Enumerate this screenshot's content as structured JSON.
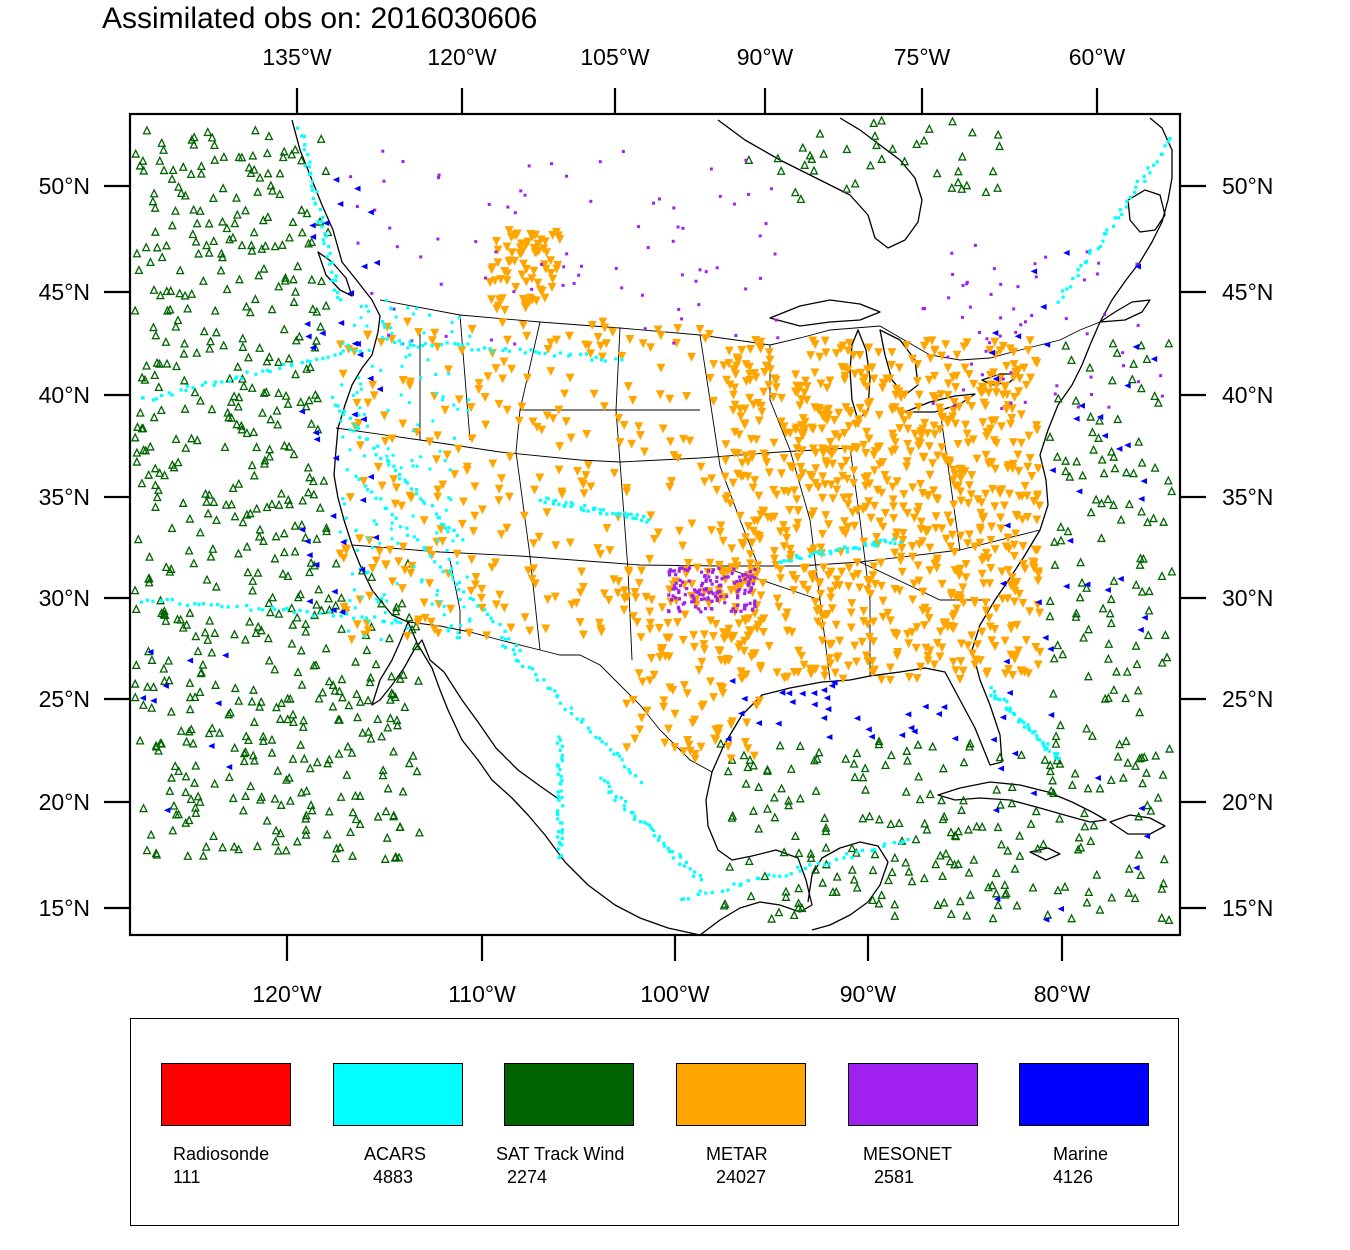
{
  "title": "Assimilated obs on: 2016030606",
  "axes": {
    "top_lon_labels": [
      "135°W",
      "120°W",
      "105°W",
      "90°W",
      "75°W",
      "60°W"
    ],
    "bottom_lon_labels": [
      "120°W",
      "110°W",
      "100°W",
      "90°W",
      "80°W"
    ],
    "lat_labels": [
      "50°N",
      "45°N",
      "40°N",
      "35°N",
      "30°N",
      "25°N",
      "20°N",
      "15°N"
    ]
  },
  "legend": [
    {
      "name": "Radiosonde",
      "count": "111",
      "color": "#ff0000"
    },
    {
      "name": "ACARS",
      "count": "4883",
      "color": "#00ffff"
    },
    {
      "name": "SAT Track Wind",
      "count": "2274",
      "color": "#006400"
    },
    {
      "name": "METAR",
      "count": "24027",
      "color": "#ffa500"
    },
    {
      "name": "MESONET",
      "count": "2581",
      "color": "#a020f0"
    },
    {
      "name": "Marine",
      "count": "4126",
      "color": "#0000ff"
    }
  ]
}
